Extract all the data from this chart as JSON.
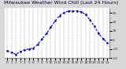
{
  "title": "Milwaukee Weather Wind Chill (Last 24 Hours)",
  "background_color": "#d8d8d8",
  "plot_bg_color": "#ffffff",
  "line_color": "#0000cc",
  "marker_color": "#000099",
  "grid_color": "#999999",
  "hours": [
    0,
    1,
    2,
    3,
    4,
    5,
    6,
    7,
    8,
    9,
    10,
    11,
    12,
    13,
    14,
    15,
    16,
    17,
    18,
    19,
    20,
    21,
    22,
    23
  ],
  "values": [
    -12,
    -14,
    -16,
    -13,
    -11,
    -10,
    -9,
    -5,
    1,
    7,
    14,
    21,
    27,
    30,
    32,
    32,
    32,
    31,
    28,
    22,
    15,
    7,
    1,
    -3
  ],
  "ylim": [
    -20,
    35
  ],
  "yticks": [
    30,
    20,
    10,
    0,
    -10,
    -20
  ],
  "ytick_labels": [
    "30",
    "20",
    "10",
    "0",
    "-10",
    "-20"
  ],
  "title_fontsize": 4.5,
  "tick_fontsize": 3.2,
  "label_color": "#333333"
}
